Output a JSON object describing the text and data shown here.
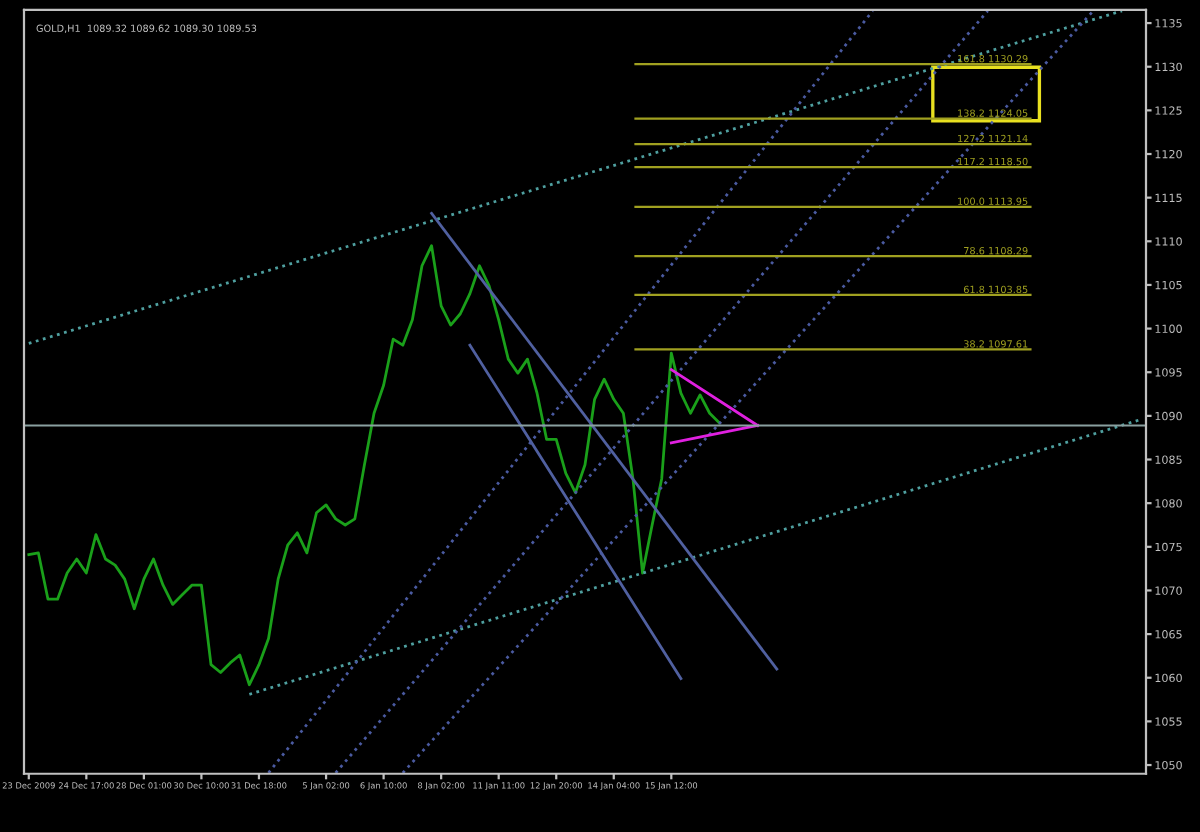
{
  "chart_data": {
    "type": "line",
    "title": "GOLD,H1  1089.32 1089.62 1089.30 1089.53",
    "ylim": [
      1049,
      1136.5
    ],
    "categories": [
      "23 Dec 2009",
      null,
      null,
      null,
      null,
      null,
      "24 Dec 17:00",
      null,
      null,
      null,
      null,
      null,
      "28 Dec 01:00",
      null,
      null,
      null,
      null,
      null,
      "30 Dec 10:00",
      null,
      null,
      null,
      null,
      null,
      "31 Dec 18:00",
      null,
      null,
      null,
      null,
      null,
      null,
      "5 Jan 02:00",
      null,
      null,
      null,
      null,
      null,
      "6 Jan 10:00",
      null,
      null,
      null,
      null,
      null,
      "8 Jan 02:00",
      null,
      null,
      null,
      null,
      null,
      "11 Jan 11:00",
      null,
      null,
      null,
      null,
      null,
      "12 Jan 20:00",
      null,
      null,
      null,
      null,
      null,
      "14 Jan 04:00",
      null,
      null,
      null,
      null,
      null,
      "15 Jan 12:00",
      null,
      null,
      null,
      null,
      null,
      null,
      null,
      null,
      null,
      null,
      null,
      null,
      null,
      null,
      null,
      null,
      null,
      null,
      null,
      null,
      null,
      null,
      null,
      null,
      null,
      null,
      null,
      null,
      null,
      null,
      null,
      null,
      null,
      null,
      null,
      null,
      null,
      null,
      null,
      null,
      null,
      null,
      null,
      null,
      null,
      null,
      null,
      null,
      null
    ],
    "yticks": [
      1050,
      1055,
      1060,
      1065,
      1070,
      1075,
      1080,
      1085,
      1090,
      1095,
      1100,
      1105,
      1110,
      1115,
      1120,
      1125,
      1130,
      1135
    ],
    "series": [
      {
        "color": "#1aa01a",
        "line_style": "solid",
        "values": [
          1074.1,
          1074.3,
          1069.0,
          1069.0,
          1072.0,
          1073.6,
          1072.0,
          1076.4,
          1073.6,
          1072.9,
          1071.3,
          1067.9,
          1071.3,
          1073.6,
          1070.6,
          1068.4,
          1069.5,
          1070.6,
          1070.6,
          1061.5,
          1060.6,
          1061.7,
          1062.6,
          1059.2,
          1061.5,
          1064.5,
          1071.3,
          1075.2,
          1076.6,
          1074.3,
          1078.9,
          1079.8,
          1078.2,
          1077.5,
          1078.2,
          1084.4,
          1090.3,
          1093.5,
          1098.8,
          1098.1,
          1101.0,
          1107.2,
          1109.5,
          1102.6,
          1100.4,
          1101.7,
          1104.0,
          1107.2,
          1104.9,
          1101.0,
          1096.5,
          1094.9,
          1096.5,
          1092.6,
          1087.3,
          1087.3,
          1083.4,
          1081.2,
          1084.4,
          1091.9,
          1094.2,
          1091.9,
          1090.3,
          1082.8,
          1072.0,
          1077.5,
          1082.8,
          1097.2,
          1092.6,
          1090.3,
          1092.4,
          1090.3,
          1089.2,
          null,
          null,
          null,
          null,
          null,
          null,
          null,
          null,
          null,
          null,
          null,
          null,
          null,
          null,
          null,
          null,
          null,
          null,
          null,
          null,
          null,
          null,
          null,
          null,
          null,
          null,
          null,
          null,
          null,
          null,
          null,
          null,
          null,
          null,
          null,
          null,
          null,
          null,
          null,
          null,
          null,
          null,
          null,
          null
        ]
      },
      {
        "color": "#4fa0a0",
        "line_style": "dotted",
        "values": [
          1098.3,
          null,
          null,
          null,
          null,
          null,
          null,
          null,
          null,
          null,
          null,
          null,
          null,
          null,
          null,
          null,
          null,
          null,
          null,
          null,
          null,
          null,
          null,
          null,
          null,
          null,
          null,
          null,
          null,
          null,
          null,
          null,
          null,
          null,
          null,
          null,
          null,
          null,
          null,
          null,
          null,
          null,
          null,
          null,
          null,
          null,
          null,
          null,
          null,
          null,
          null,
          null,
          null,
          null,
          null,
          null,
          null,
          null,
          null,
          null,
          null,
          null,
          null,
          null,
          null,
          null,
          null,
          null,
          null,
          null,
          null,
          null,
          null,
          null,
          null,
          null,
          null,
          null,
          null,
          null,
          null,
          null,
          null,
          null,
          null,
          null,
          null,
          null,
          null,
          null,
          null,
          null,
          null,
          null,
          null,
          null,
          null,
          null,
          null,
          null,
          null,
          null,
          null,
          null,
          null,
          null,
          null,
          null,
          null,
          null,
          null,
          null,
          null,
          null,
          1136.4,
          null,
          null
        ]
      },
      {
        "color": "#4fa0a0",
        "line_style": "dotted",
        "values": [
          null,
          null,
          null,
          null,
          null,
          null,
          null,
          null,
          null,
          null,
          null,
          null,
          null,
          null,
          null,
          null,
          null,
          null,
          null,
          null,
          null,
          null,
          null,
          1058.1,
          null,
          null,
          null,
          null,
          null,
          null,
          null,
          null,
          null,
          null,
          null,
          null,
          null,
          null,
          null,
          null,
          null,
          null,
          null,
          null,
          null,
          null,
          null,
          null,
          null,
          null,
          null,
          null,
          null,
          null,
          null,
          null,
          null,
          null,
          null,
          null,
          null,
          null,
          null,
          null,
          null,
          null,
          null,
          null,
          null,
          null,
          null,
          null,
          null,
          null,
          null,
          null,
          null,
          null,
          null,
          null,
          null,
          null,
          null,
          null,
          null,
          null,
          null,
          null,
          null,
          null,
          null,
          null,
          null,
          null,
          null,
          null,
          null,
          null,
          null,
          null,
          null,
          null,
          null,
          null,
          null,
          null,
          null,
          null,
          null,
          null,
          null,
          null,
          null,
          null,
          null,
          null,
          1089.6
        ]
      },
      {
        "color": "#5060a0",
        "line_style": "solid",
        "values": [
          null,
          null,
          null,
          null,
          null,
          null,
          null,
          null,
          null,
          null,
          null,
          null,
          null,
          null,
          null,
          null,
          null,
          null,
          null,
          null,
          null,
          null,
          null,
          null,
          null,
          null,
          null,
          null,
          null,
          null,
          null,
          null,
          null,
          null,
          null,
          null,
          null,
          null,
          null,
          null,
          null,
          null,
          1113.2,
          null,
          null,
          null,
          null,
          null,
          null,
          null,
          null,
          null,
          null,
          null,
          null,
          null,
          null,
          null,
          null,
          null,
          null,
          null,
          null,
          null,
          null,
          null,
          null,
          null,
          null,
          null,
          null,
          null,
          null,
          null,
          null,
          null,
          null,
          null,
          1061.0,
          null,
          null,
          null,
          null,
          null,
          null,
          null,
          null,
          null,
          null,
          null,
          null,
          null,
          null,
          null,
          null,
          null,
          null,
          null,
          null,
          null,
          null,
          null,
          null,
          null,
          null,
          null,
          null,
          null,
          null,
          null,
          null,
          null,
          null,
          null,
          null,
          null,
          null
        ]
      },
      {
        "color": "#5060a0",
        "line_style": "solid",
        "values": [
          null,
          null,
          null,
          null,
          null,
          null,
          null,
          null,
          null,
          null,
          null,
          null,
          null,
          null,
          null,
          null,
          null,
          null,
          null,
          null,
          null,
          null,
          null,
          null,
          null,
          null,
          null,
          null,
          null,
          null,
          null,
          null,
          null,
          null,
          null,
          null,
          null,
          null,
          null,
          null,
          null,
          null,
          null,
          null,
          null,
          null,
          1098.1,
          null,
          null,
          null,
          null,
          null,
          null,
          null,
          null,
          null,
          null,
          null,
          null,
          null,
          null,
          null,
          null,
          null,
          null,
          null,
          null,
          null,
          1059.9,
          null,
          null,
          null,
          null,
          null,
          null,
          null,
          null,
          null,
          null,
          null,
          null,
          null,
          null,
          null,
          null,
          null,
          null,
          null,
          null,
          null,
          null,
          null,
          null,
          null,
          null,
          null,
          null,
          null,
          null,
          null,
          null,
          null,
          null,
          null,
          null,
          null,
          null,
          null,
          null,
          null,
          null,
          null,
          null,
          null,
          null,
          null,
          null
        ]
      },
      {
        "color": "#4a5aa0",
        "line_style": "dotted",
        "values": [
          null,
          null,
          null,
          null,
          null,
          null,
          null,
          null,
          null,
          null,
          null,
          null,
          null,
          null,
          null,
          null,
          null,
          null,
          null,
          null,
          null,
          null,
          null,
          null,
          null,
          1049.1,
          null,
          null,
          null,
          null,
          null,
          null,
          null,
          null,
          null,
          null,
          null,
          null,
          null,
          null,
          null,
          null,
          null,
          null,
          null,
          null,
          null,
          null,
          null,
          null,
          null,
          null,
          null,
          null,
          null,
          null,
          null,
          null,
          null,
          null,
          null,
          null,
          null,
          null,
          null,
          null,
          null,
          null,
          null,
          null,
          null,
          null,
          null,
          null,
          null,
          null,
          null,
          null,
          null,
          null,
          null,
          null,
          null,
          null,
          null,
          null,
          null,
          null,
          1136.4,
          null,
          null,
          null,
          null,
          null,
          null,
          null,
          null,
          null,
          null,
          null,
          null,
          null,
          null,
          null,
          null,
          null,
          null,
          null,
          null,
          null,
          null,
          null,
          null,
          null,
          null,
          null,
          null
        ]
      },
      {
        "color": "#4a5aa0",
        "line_style": "dotted",
        "values": [
          null,
          null,
          null,
          null,
          null,
          null,
          null,
          null,
          null,
          null,
          null,
          null,
          null,
          null,
          null,
          null,
          null,
          null,
          null,
          null,
          null,
          null,
          null,
          null,
          null,
          null,
          null,
          null,
          null,
          null,
          null,
          null,
          1049.1,
          null,
          null,
          null,
          null,
          null,
          null,
          null,
          null,
          null,
          null,
          null,
          null,
          null,
          null,
          null,
          null,
          null,
          null,
          null,
          null,
          null,
          null,
          null,
          null,
          null,
          null,
          null,
          null,
          null,
          null,
          null,
          null,
          null,
          null,
          null,
          null,
          null,
          null,
          null,
          null,
          null,
          null,
          null,
          null,
          null,
          null,
          null,
          null,
          null,
          null,
          null,
          null,
          null,
          null,
          null,
          null,
          null,
          null,
          null,
          null,
          null,
          null,
          null,
          null,
          null,
          null,
          null,
          1136.4,
          null,
          null,
          null,
          null,
          null,
          null,
          null,
          null,
          null,
          null,
          null,
          null,
          null,
          null,
          null,
          null
        ]
      },
      {
        "color": "#4a5aa0",
        "line_style": "dotted",
        "values": [
          null,
          null,
          null,
          null,
          null,
          null,
          null,
          null,
          null,
          null,
          null,
          null,
          null,
          null,
          null,
          null,
          null,
          null,
          null,
          null,
          null,
          null,
          null,
          null,
          null,
          null,
          null,
          null,
          null,
          null,
          null,
          null,
          null,
          null,
          null,
          null,
          null,
          null,
          null,
          1049.1,
          null,
          null,
          null,
          null,
          null,
          null,
          null,
          null,
          null,
          null,
          null,
          null,
          null,
          null,
          null,
          null,
          null,
          null,
          null,
          null,
          null,
          null,
          null,
          null,
          null,
          null,
          null,
          null,
          null,
          null,
          null,
          null,
          null,
          null,
          null,
          null,
          null,
          null,
          null,
          null,
          null,
          null,
          null,
          null,
          null,
          null,
          null,
          null,
          null,
          null,
          null,
          null,
          null,
          null,
          null,
          null,
          null,
          null,
          null,
          null,
          null,
          null,
          null,
          null,
          null,
          null,
          null,
          null,
          null,
          null,
          null,
          1136.4,
          null,
          null,
          null,
          null,
          null
        ]
      },
      {
        "color": "#e020e0",
        "line_style": "solid",
        "values": [
          null,
          null,
          null,
          null,
          null,
          null,
          null,
          null,
          null,
          null,
          null,
          null,
          null,
          null,
          null,
          null,
          null,
          null,
          null,
          null,
          null,
          null,
          null,
          null,
          null,
          null,
          null,
          null,
          null,
          null,
          null,
          null,
          null,
          null,
          null,
          null,
          null,
          null,
          null,
          null,
          null,
          null,
          null,
          null,
          null,
          null,
          null,
          null,
          null,
          null,
          null,
          null,
          null,
          null,
          null,
          null,
          null,
          null,
          null,
          null,
          null,
          null,
          null,
          null,
          null,
          null,
          null,
          1095.3,
          null,
          null,
          null,
          null,
          null,
          null,
          null,
          null,
          1088.9,
          null,
          null,
          null,
          null,
          null,
          null,
          null,
          null,
          null,
          null,
          null,
          null,
          null,
          null,
          null,
          null,
          null,
          null,
          null,
          null,
          null,
          null,
          null,
          null,
          null,
          null,
          null,
          null,
          null,
          null,
          null,
          null,
          null,
          null,
          null,
          null,
          null,
          null,
          null,
          null
        ]
      },
      {
        "color": "#e020e0",
        "line_style": "solid",
        "values": [
          null,
          null,
          null,
          null,
          null,
          null,
          null,
          null,
          null,
          null,
          null,
          null,
          null,
          null,
          null,
          null,
          null,
          null,
          null,
          null,
          null,
          null,
          null,
          null,
          null,
          null,
          null,
          null,
          null,
          null,
          null,
          null,
          null,
          null,
          null,
          null,
          null,
          null,
          null,
          null,
          null,
          null,
          null,
          null,
          null,
          null,
          null,
          null,
          null,
          null,
          null,
          null,
          null,
          null,
          null,
          null,
          null,
          null,
          null,
          null,
          null,
          null,
          null,
          null,
          null,
          null,
          null,
          1086.9,
          null,
          null,
          null,
          null,
          null,
          null,
          null,
          null,
          1088.9,
          null,
          null,
          null,
          null,
          null,
          null,
          null,
          null,
          null,
          null,
          null,
          null,
          null,
          null,
          null,
          null,
          null,
          null,
          null,
          null,
          null,
          null,
          null,
          null,
          null,
          null,
          null,
          null,
          null,
          null,
          null,
          null,
          null,
          null,
          null,
          null,
          null,
          null,
          null,
          null
        ]
      }
    ],
    "ref_lines": [
      {
        "axis": "y",
        "value": 1130.29,
        "label": "161.8 1130.29",
        "color": "#a0a020"
      },
      {
        "axis": "y",
        "value": 1124.05,
        "label": "138.2 1124.05",
        "color": "#a0a020"
      },
      {
        "axis": "y",
        "value": 1121.14,
        "label": "127.2 1121.14",
        "color": "#a0a020"
      },
      {
        "axis": "y",
        "value": 1118.5,
        "label": "117.2 1118.50",
        "color": "#a0a020"
      },
      {
        "axis": "y",
        "value": 1113.95,
        "label": "100.0 1113.95",
        "color": "#a0a020"
      },
      {
        "axis": "y",
        "value": 1108.29,
        "label": "78.6 1108.29",
        "color": "#a0a020"
      },
      {
        "axis": "y",
        "value": 1103.85,
        "label": "61.8 1103.85",
        "color": "#a0a020"
      },
      {
        "axis": "y",
        "value": 1097.61,
        "label": "38.2 1097.61",
        "color": "#a0a020"
      },
      {
        "axis": "y",
        "value": 1088.9,
        "label": null,
        "color": "#8aa0a0"
      }
    ]
  }
}
